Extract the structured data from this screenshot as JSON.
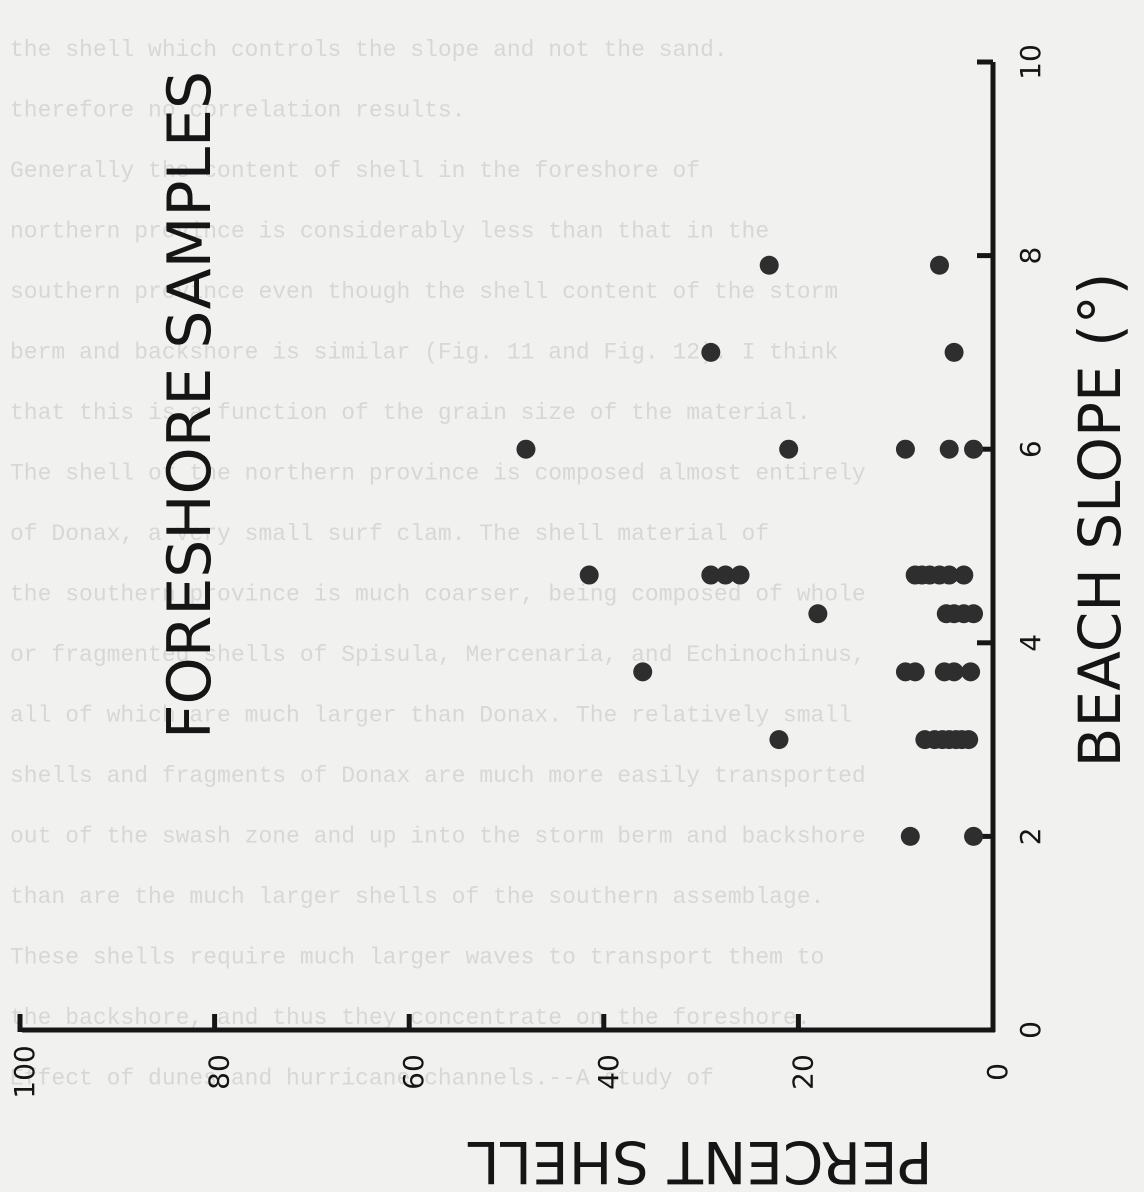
{
  "background_text": {
    "lines": [
      "the shell which controls the slope and not the sand.",
      "therefore no correlation results.",
      "Generally the content of shell in the foreshore of",
      "northern province is considerably less than that in the",
      "southern province even though the shell content of the storm",
      "berm and backshore is similar (Fig. 11 and Fig. 12). I think",
      "that this is a function of the grain size of the material.",
      "The shell of the northern province is composed almost entirely",
      "of Donax, a very small surf clam. The shell material of",
      "the southern province is much coarser, being composed of whole",
      "or fragmented shells of Spisula, Mercenaria, and Echinochinus,",
      "all of which are much larger than Donax. The relatively small",
      "shells and fragments of Donax are much more easily transported",
      "out of the swash zone and up into the storm berm and backshore",
      "than are the much larger shells of the southern assemblage.",
      "These shells require much larger waves to transport them to",
      "the backshore, and thus they concentrate on the foreshore.",
      "Effect of dunes and hurricane channels.--A study of"
    ]
  },
  "chart_data": {
    "type": "scatter",
    "title": "FORESHORE SAMPLES",
    "xlabel": "BEACH SLOPE (°)",
    "ylabel": "PERCENT SHELL",
    "xlim": [
      0,
      10
    ],
    "ylim": [
      0,
      100
    ],
    "x_ticks": [
      "0",
      "2",
      "4",
      "6",
      "8",
      "10"
    ],
    "y_ticks": [
      "0",
      "20",
      "40",
      "60",
      "80",
      "100"
    ],
    "grid": false,
    "marker_color": "#2e2e2e",
    "points": [
      {
        "x": 2.0,
        "y": 2.0
      },
      {
        "x": 2.0,
        "y": 8.5
      },
      {
        "x": 3.0,
        "y": 2.5
      },
      {
        "x": 3.0,
        "y": 3.2
      },
      {
        "x": 3.0,
        "y": 3.8
      },
      {
        "x": 3.0,
        "y": 4.5
      },
      {
        "x": 3.0,
        "y": 5.2
      },
      {
        "x": 3.0,
        "y": 6.0
      },
      {
        "x": 3.0,
        "y": 7.0
      },
      {
        "x": 3.0,
        "y": 22.0
      },
      {
        "x": 3.7,
        "y": 2.3
      },
      {
        "x": 3.7,
        "y": 4.0
      },
      {
        "x": 3.7,
        "y": 5.0
      },
      {
        "x": 3.7,
        "y": 8.0
      },
      {
        "x": 3.7,
        "y": 9.0
      },
      {
        "x": 3.7,
        "y": 36.0
      },
      {
        "x": 4.3,
        "y": 2.0
      },
      {
        "x": 4.3,
        "y": 3.0
      },
      {
        "x": 4.3,
        "y": 4.0
      },
      {
        "x": 4.3,
        "y": 4.8
      },
      {
        "x": 4.3,
        "y": 18.0
      },
      {
        "x": 4.7,
        "y": 3.0
      },
      {
        "x": 4.7,
        "y": 4.5
      },
      {
        "x": 4.7,
        "y": 5.5
      },
      {
        "x": 4.7,
        "y": 6.5
      },
      {
        "x": 4.7,
        "y": 7.3
      },
      {
        "x": 4.7,
        "y": 8.0
      },
      {
        "x": 4.7,
        "y": 26.0
      },
      {
        "x": 4.7,
        "y": 27.5
      },
      {
        "x": 4.7,
        "y": 29.0
      },
      {
        "x": 4.7,
        "y": 41.5
      },
      {
        "x": 6.0,
        "y": 2.0
      },
      {
        "x": 6.0,
        "y": 4.5
      },
      {
        "x": 6.0,
        "y": 9.0
      },
      {
        "x": 6.0,
        "y": 21.0
      },
      {
        "x": 6.0,
        "y": 48.0
      },
      {
        "x": 7.0,
        "y": 4.0
      },
      {
        "x": 7.0,
        "y": 29.0
      },
      {
        "x": 7.9,
        "y": 5.5
      },
      {
        "x": 7.9,
        "y": 23.0
      }
    ]
  }
}
